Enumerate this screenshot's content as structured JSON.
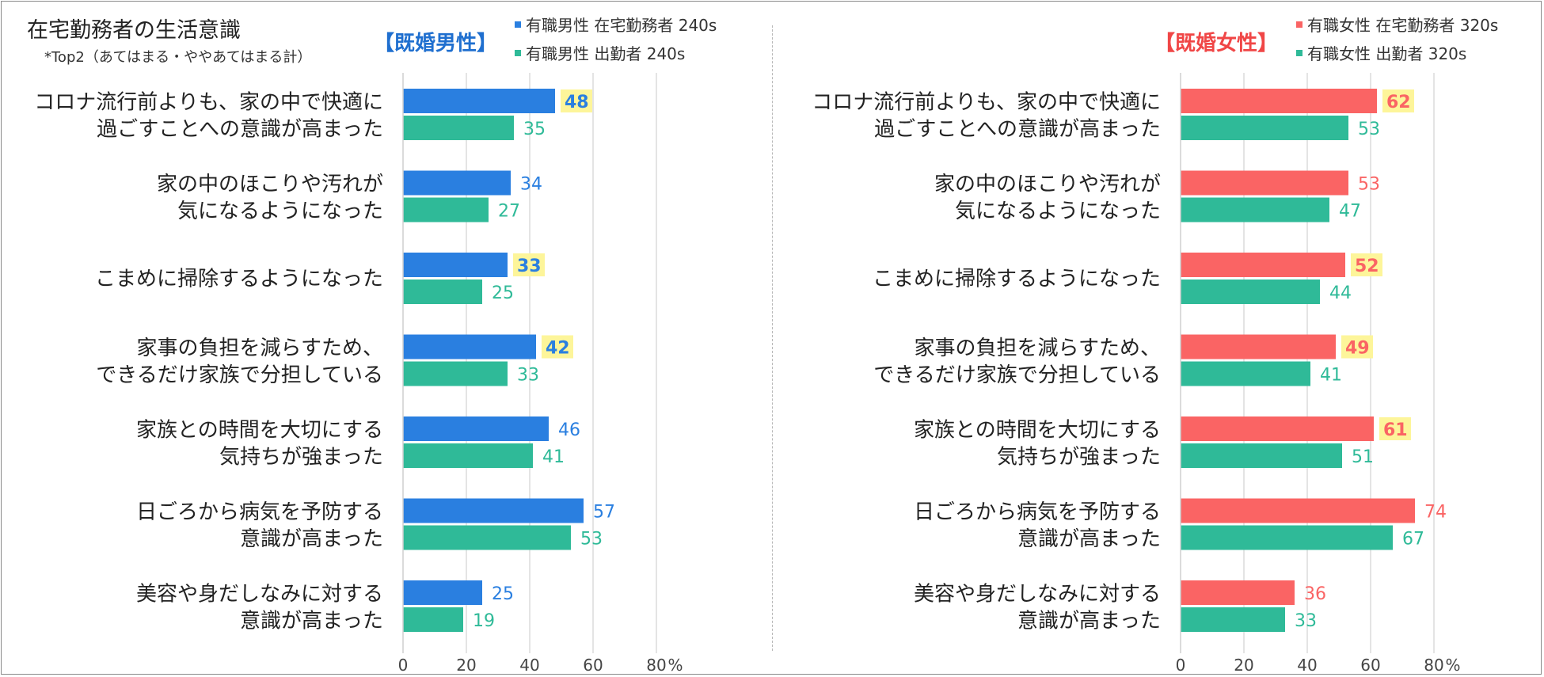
{
  "title": "在宅勤務者の生活意識",
  "subtitle": "*Top2（あてはまる・ややあてはまる計）",
  "colors": {
    "male_remote": "#2a7fe0",
    "commuter": "#2fba98",
    "female_remote": "#fa6464",
    "highlight_bg": "#fdf59a",
    "male_title": "#1f6fcf",
    "female_title": "#f04646"
  },
  "chart_data": [
    {
      "type": "bar",
      "orientation": "horizontal",
      "group_title": "【既婚男性】",
      "categories": [
        "コロナ流行前よりも、家の中で快適に\n過ごすことへの意識が高まった",
        "家の中のほこりや汚れが\n気になるようになった",
        "こまめに掃除するようになった",
        "家事の負担を減らすため、\nできるだけ家族で分担している",
        "家族との時間を大切にする\n気持ちが強まった",
        "日ごろから病気を予防する\n意識が高まった",
        "美容や身だしなみに対する\n意識が高まった"
      ],
      "series": [
        {
          "name": "有職男性 在宅勤務者 240s",
          "color": "#2a7fe0",
          "values": [
            48,
            34,
            33,
            42,
            46,
            57,
            25
          ],
          "highlight": [
            true,
            false,
            true,
            true,
            false,
            false,
            false
          ]
        },
        {
          "name": "有職男性 出勤者 240s",
          "color": "#2fba98",
          "values": [
            35,
            27,
            25,
            33,
            41,
            53,
            19
          ]
        }
      ],
      "xlim": [
        0,
        80
      ],
      "ticks": [
        "0",
        "20",
        "40",
        "60",
        "80"
      ],
      "unit": "%"
    },
    {
      "type": "bar",
      "orientation": "horizontal",
      "group_title": "【既婚女性】",
      "categories": [
        "コロナ流行前よりも、家の中で快適に\n過ごすことへの意識が高まった",
        "家の中のほこりや汚れが\n気になるようになった",
        "こまめに掃除するようになった",
        "家事の負担を減らすため、\nできるだけ家族で分担している",
        "家族との時間を大切にする\n気持ちが強まった",
        "日ごろから病気を予防する\n意識が高まった",
        "美容や身だしなみに対する\n意識が高まった"
      ],
      "series": [
        {
          "name": "有職女性 在宅勤務者 320s",
          "color": "#fa6464",
          "values": [
            62,
            53,
            52,
            49,
            61,
            74,
            36
          ],
          "highlight": [
            true,
            false,
            true,
            true,
            true,
            false,
            false
          ]
        },
        {
          "name": "有職女性 出勤者 320s",
          "color": "#2fba98",
          "values": [
            53,
            47,
            44,
            41,
            51,
            67,
            33
          ]
        }
      ],
      "xlim": [
        0,
        80
      ],
      "ticks": [
        "0",
        "20",
        "40",
        "60",
        "80"
      ],
      "unit": "%"
    }
  ]
}
